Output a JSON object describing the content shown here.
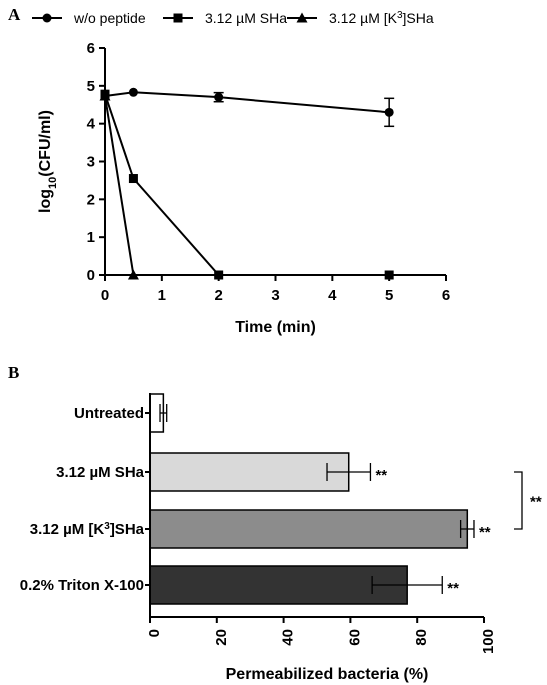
{
  "colors": {
    "ink": "#000000",
    "bar_fills": [
      "#ffffff",
      "#d9d9d9",
      "#8c8c8c",
      "#333333"
    ]
  },
  "chart_data": [
    {
      "panel": "A",
      "type": "line",
      "xlabel": "Time (min)",
      "ylabel": {
        "prefix": "log",
        "sub": "10",
        "suffix": "(CFU/ml)"
      },
      "xlim": [
        0,
        6
      ],
      "ylim": [
        0,
        6
      ],
      "xticks": [
        0,
        1,
        2,
        3,
        4,
        5,
        6
      ],
      "yticks": [
        0,
        1,
        2,
        3,
        4,
        5,
        6
      ],
      "legend_position": "top",
      "series": [
        {
          "name": "w/o peptide",
          "marker": "circle",
          "x": [
            0,
            0.5,
            2,
            5
          ],
          "y": [
            4.73,
            4.83,
            4.7,
            4.3
          ],
          "err": [
            0.05,
            0.05,
            0.12,
            0.37
          ]
        },
        {
          "name": "3.12 µM SHa",
          "marker": "square",
          "x": [
            0,
            0.5,
            2,
            5
          ],
          "y": [
            4.78,
            2.55,
            0,
            0
          ],
          "err": [
            0.05,
            0.05,
            0,
            0
          ]
        },
        {
          "name_parts": [
            "3.12 µM [K",
            "3",
            "]SHa"
          ],
          "marker": "triangle",
          "x": [
            0,
            0.5
          ],
          "y": [
            4.73,
            0
          ],
          "err": [
            0.05,
            0
          ]
        }
      ]
    },
    {
      "panel": "B",
      "type": "bar",
      "orientation": "horizontal",
      "xlabel": "Permeabilized bacteria (%)",
      "xlim": [
        0,
        100
      ],
      "xticks": [
        0,
        20,
        40,
        60,
        80,
        100
      ],
      "categories": [
        "Untreated",
        "3.12 µM SHa",
        "3.12 µM [K3]SHa",
        "0.2% Triton X-100"
      ],
      "category_labels": [
        {
          "parts": [
            "Untreated"
          ]
        },
        {
          "parts": [
            "3.12 µM SHa"
          ]
        },
        {
          "parts": [
            "3.12 µM [K",
            "3",
            "]SHa"
          ]
        },
        {
          "parts": [
            "0.2% Triton X-100"
          ]
        }
      ],
      "values": [
        4,
        59.5,
        95,
        77
      ],
      "errors": [
        1,
        6.5,
        2,
        10.5
      ],
      "significance": [
        "",
        "**",
        "**",
        "**"
      ],
      "bracket": {
        "between": [
          1,
          2
        ],
        "label": "**"
      }
    }
  ]
}
